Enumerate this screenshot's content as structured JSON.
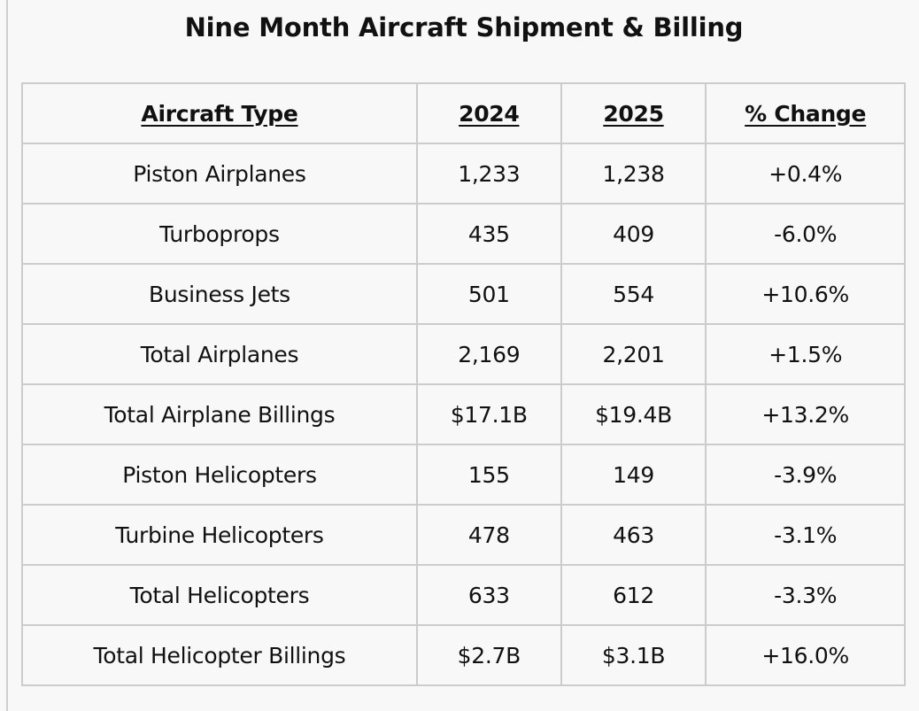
{
  "title": "Nine Month Aircraft Shipment & Billing",
  "table": {
    "headers": [
      "Aircraft Type",
      "2024",
      "2025",
      "% Change"
    ],
    "rows": [
      [
        "Piston Airplanes",
        "1,233",
        "1,238",
        "+0.4%"
      ],
      [
        "Turboprops",
        "435",
        "409",
        "-6.0%"
      ],
      [
        "Business Jets",
        "501",
        "554",
        "+10.6%"
      ],
      [
        "Total Airplanes",
        "2,169",
        "2,201",
        "+1.5%"
      ],
      [
        "Total Airplane Billings",
        "$17.1B",
        "$19.4B",
        "+13.2%"
      ],
      [
        "Piston Helicopters",
        "155",
        "149",
        "-3.9%"
      ],
      [
        "Turbine Helicopters",
        "478",
        "463",
        "-3.1%"
      ],
      [
        "Total Helicopters",
        "633",
        "612",
        "-3.3%"
      ],
      [
        "Total Helicopter Billings",
        "$2.7B",
        "$3.1B",
        "+16.0%"
      ]
    ]
  }
}
